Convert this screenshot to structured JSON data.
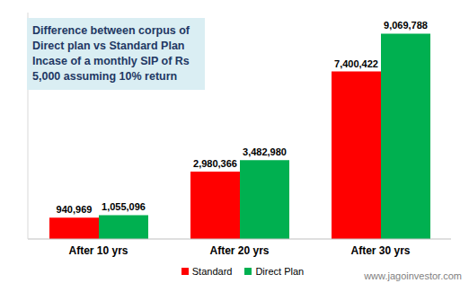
{
  "chart_data": {
    "type": "bar",
    "title": "Difference between corpus of Direct plan vs Standard Plan Incase of a monthly SIP of Rs 5,000 assuming 10% return",
    "categories": [
      "After 10 yrs",
      "After 20 yrs",
      "After 30 yrs"
    ],
    "series": [
      {
        "name": "Standard",
        "color": "#ff0000",
        "values": [
          940969,
          2980366,
          7400422
        ],
        "value_labels": [
          "940,969",
          "2,980,366",
          "7,400,422"
        ]
      },
      {
        "name": "Direct Plan",
        "color": "#00b050",
        "values": [
          1055096,
          3482980,
          9069788
        ],
        "value_labels": [
          "1,055,096",
          "3,482,980",
          "9,069,788"
        ]
      }
    ],
    "ylim": [
      0,
      10000000
    ],
    "grid": false,
    "data_labels": true,
    "tick_labels": "x",
    "legend": "bottom",
    "annotation": "www.jagoinvestor.com"
  }
}
